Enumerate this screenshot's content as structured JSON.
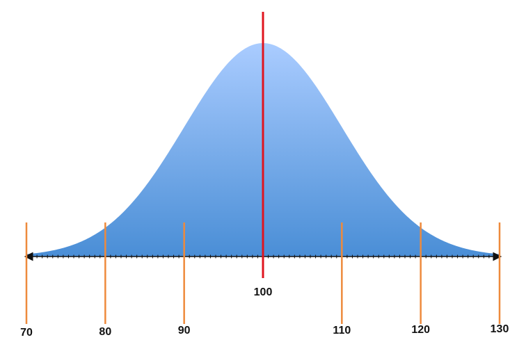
{
  "chart_data": {
    "type": "area",
    "title": "",
    "xlabel": "",
    "ylabel": "",
    "distribution": "normal",
    "mean": 100,
    "standard_deviation": 10,
    "xlim": [
      70,
      130
    ],
    "grid": false,
    "legend": "none",
    "reference_lines": [
      {
        "x": 70,
        "label": "70"
      },
      {
        "x": 80,
        "label": "80"
      },
      {
        "x": 90,
        "label": "90"
      },
      {
        "x": 110,
        "label": "110"
      },
      {
        "x": 120,
        "label": "120"
      },
      {
        "x": 130,
        "label": "130"
      }
    ],
    "mean_line": {
      "x": 100,
      "label": "100"
    },
    "colors": {
      "curve_fill_top": "#aaccff",
      "curve_fill_bottom": "#4a8ed6",
      "mean_line": "#e0141e",
      "reference_line": "#ee8a3c",
      "axis": "#111111"
    }
  }
}
